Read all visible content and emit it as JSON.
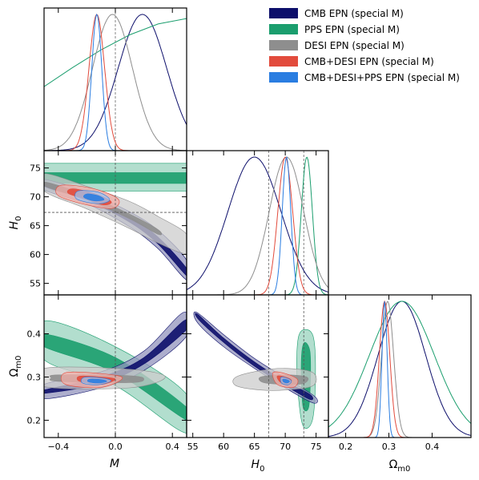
{
  "colors": {
    "cmb": "#0d0f6b",
    "pps": "#1b9e6e",
    "desi": "#8e8e8e",
    "cmb_desi": "#e24b3c",
    "all": "#2a7de1"
  },
  "legend": [
    {
      "key": "cmb",
      "label": "CMB EPN (special M)"
    },
    {
      "key": "pps",
      "label": "PPS EPN (special M)"
    },
    {
      "key": "desi",
      "label": "DESI EPN (special M)"
    },
    {
      "key": "cmb_desi",
      "label": "CMB+DESI EPN (special M)"
    },
    {
      "key": "all",
      "label": "CMB+DESI+PPS EPN (special M)"
    }
  ],
  "labels": {
    "M": "M",
    "H0": "H",
    "H0_sub": "0",
    "Om": "Ω",
    "Om_sub": "m0"
  },
  "chart_data": {
    "type": "corner",
    "parameters": [
      {
        "name": "M",
        "range": [
          -0.5,
          0.5
        ],
        "ticks": [
          -0.4,
          0.0,
          0.4
        ],
        "tick_labels": [
          "−0.4",
          "0.0",
          "0.4"
        ]
      },
      {
        "name": "H0",
        "range": [
          54,
          77
        ],
        "ticks": [
          55,
          60,
          65,
          70,
          75
        ],
        "tick_labels": [
          "55",
          "60",
          "65",
          "70",
          "75"
        ],
        "y_ticks": [
          55,
          60,
          65,
          70,
          75
        ],
        "y_tick_labels": [
          "55",
          "60",
          "65",
          "70",
          "75"
        ],
        "y_range": [
          53,
          78
        ]
      },
      {
        "name": "Omega_m0",
        "range": [
          0.16,
          0.49
        ],
        "ticks": [
          0.2,
          0.3,
          0.4
        ],
        "tick_labels": [
          "0.2",
          "0.3",
          "0.4"
        ]
      }
    ],
    "reference_lines": {
      "M": 0.0,
      "H0": 67.3,
      "H0_alt": 73.0
    },
    "marginals_1d": {
      "M": [
        {
          "series": "cmb",
          "mean": 0.19,
          "sigma": 0.17
        },
        {
          "series": "pps",
          "monotonic": true,
          "points": [
            [
              -0.5,
              0.47
            ],
            [
              -0.3,
              0.61
            ],
            [
              -0.1,
              0.74
            ],
            [
              0.1,
              0.85
            ],
            [
              0.3,
              0.93
            ],
            [
              0.5,
              0.97
            ]
          ]
        },
        {
          "series": "desi",
          "mean": -0.02,
          "sigma": 0.14
        },
        {
          "series": "cmb_desi",
          "mean": -0.13,
          "sigma": 0.055
        },
        {
          "series": "all",
          "mean": -0.13,
          "sigma": 0.035
        }
      ],
      "H0": [
        {
          "series": "cmb",
          "mean": 65.0,
          "sigma": 4.3
        },
        {
          "series": "pps",
          "mean": 73.5,
          "sigma": 0.9
        },
        {
          "series": "desi",
          "mean": 70.2,
          "sigma": 2.8
        },
        {
          "series": "cmb_desi",
          "mean": 70.0,
          "sigma": 1.2
        },
        {
          "series": "all",
          "mean": 70.2,
          "sigma": 0.7
        }
      ],
      "Omega_m0": [
        {
          "series": "cmb",
          "mean": 0.33,
          "sigma": 0.055
        },
        {
          "series": "pps",
          "mean": 0.33,
          "sigma": 0.075
        },
        {
          "series": "desi",
          "mean": 0.297,
          "sigma": 0.014
        },
        {
          "series": "cmb_desi",
          "mean": 0.29,
          "sigma": 0.012
        },
        {
          "series": "all",
          "mean": 0.29,
          "sigma": 0.006
        }
      ]
    },
    "contours_2d": {
      "M_H0": [
        {
          "series": "pps",
          "sigma1": [
            [
              -0.5,
              74.2
            ],
            [
              0.5,
              74.2
            ],
            [
              0.5,
              72.3
            ],
            [
              -0.5,
              72.3
            ]
          ],
          "sigma2": [
            [
              -0.5,
              75.8
            ],
            [
              0.5,
              75.8
            ],
            [
              0.5,
              71.0
            ],
            [
              -0.5,
              71.0
            ]
          ]
        },
        {
          "series": "cmb",
          "sigma1": [
            [
              -0.48,
              72.4
            ],
            [
              -0.2,
              70.2
            ],
            [
              0.1,
              66.6
            ],
            [
              0.3,
              63.0
            ],
            [
              0.5,
              57.6
            ],
            [
              0.5,
              56.3
            ],
            [
              0.3,
              61.8
            ],
            [
              0.1,
              65.6
            ],
            [
              -0.2,
              69.4
            ],
            [
              -0.48,
              71.6
            ]
          ],
          "sigma2": [
            [
              -0.5,
              73.0
            ],
            [
              -0.2,
              70.8
            ],
            [
              0.1,
              67.4
            ],
            [
              0.3,
              64.2
            ],
            [
              0.5,
              59.0
            ],
            [
              0.5,
              55.6
            ],
            [
              0.3,
              61.0
            ],
            [
              0.1,
              64.8
            ],
            [
              -0.2,
              68.8
            ],
            [
              -0.5,
              71.2
            ]
          ]
        },
        {
          "series": "desi",
          "sigma1": [
            [
              -0.48,
              72.5
            ],
            [
              -0.2,
              70.3
            ],
            [
              0.1,
              67.0
            ],
            [
              0.3,
              64.3
            ],
            [
              0.3,
              63.5
            ],
            [
              0.1,
              66.2
            ],
            [
              -0.2,
              69.5
            ],
            [
              -0.48,
              71.7
            ]
          ],
          "sigma2": [
            [
              -0.5,
              74.0
            ],
            [
              -0.2,
              71.8
            ],
            [
              0.1,
              69.2
            ],
            [
              0.3,
              66.6
            ],
            [
              0.5,
              63.5
            ],
            [
              0.5,
              60.2
            ],
            [
              0.3,
              62.0
            ],
            [
              0.1,
              64.5
            ],
            [
              -0.2,
              67.9
            ],
            [
              -0.5,
              71.0
            ]
          ]
        },
        {
          "series": "cmb_desi",
          "sigma1": [
            [
              -0.3,
              71.4
            ],
            [
              -0.15,
              70.6
            ],
            [
              -0.03,
              69.2
            ],
            [
              -0.08,
              68.6
            ],
            [
              -0.2,
              69.5
            ],
            [
              -0.33,
              70.6
            ]
          ],
          "sigma2": [
            [
              -0.38,
              72.0
            ],
            [
              -0.15,
              71.4
            ],
            [
              0.02,
              69.6
            ],
            [
              -0.02,
              68.0
            ],
            [
              -0.2,
              68.6
            ],
            [
              -0.4,
              70.2
            ]
          ]
        },
        {
          "series": "all",
          "sigma1": [
            [
              -0.2,
              70.5
            ],
            [
              -0.12,
              70.2
            ],
            [
              -0.08,
              69.5
            ],
            [
              -0.15,
              69.3
            ],
            [
              -0.22,
              69.9
            ]
          ],
          "sigma2": [
            [
              -0.26,
              71.0
            ],
            [
              -0.12,
              70.8
            ],
            [
              -0.04,
              69.5
            ],
            [
              -0.12,
              68.8
            ],
            [
              -0.27,
              69.6
            ]
          ]
        }
      ],
      "M_Om": [
        {
          "series": "pps",
          "sigma1": [
            [
              -0.5,
              0.4
            ],
            [
              0.0,
              0.345
            ],
            [
              0.5,
              0.23
            ],
            [
              0.5,
              0.2
            ],
            [
              0.0,
              0.31
            ],
            [
              -0.5,
              0.37
            ]
          ],
          "sigma2": [
            [
              -0.5,
              0.43
            ],
            [
              0.0,
              0.37
            ],
            [
              0.5,
              0.26
            ],
            [
              0.5,
              0.17
            ],
            [
              0.0,
              0.28
            ],
            [
              -0.5,
              0.34
            ]
          ]
        },
        {
          "series": "cmb",
          "sigma1": [
            [
              -0.5,
              0.27
            ],
            [
              -0.1,
              0.3
            ],
            [
              0.2,
              0.345
            ],
            [
              0.48,
              0.43
            ],
            [
              0.5,
              0.41
            ],
            [
              0.2,
              0.33
            ],
            [
              -0.1,
              0.285
            ],
            [
              -0.5,
              0.262
            ]
          ],
          "sigma2": [
            [
              -0.5,
              0.283
            ],
            [
              -0.1,
              0.312
            ],
            [
              0.2,
              0.36
            ],
            [
              0.48,
              0.45
            ],
            [
              0.5,
              0.395
            ],
            [
              0.2,
              0.315
            ],
            [
              -0.1,
              0.275
            ],
            [
              -0.5,
              0.25
            ]
          ]
        },
        {
          "series": "desi",
          "sigma1": [
            [
              -0.4,
              0.305
            ],
            [
              0.1,
              0.303
            ],
            [
              0.2,
              0.295
            ],
            [
              0.1,
              0.287
            ],
            [
              -0.4,
              0.29
            ],
            [
              -0.45,
              0.298
            ]
          ],
          "sigma2": [
            [
              -0.5,
              0.32
            ],
            [
              0.1,
              0.318
            ],
            [
              0.35,
              0.3
            ],
            [
              0.1,
              0.275
            ],
            [
              -0.5,
              0.278
            ]
          ]
        },
        {
          "series": "cmb_desi",
          "sigma1": [
            [
              -0.25,
              0.302
            ],
            [
              -0.1,
              0.3
            ],
            [
              0.0,
              0.295
            ],
            [
              -0.1,
              0.283
            ],
            [
              -0.25,
              0.29
            ]
          ],
          "sigma2": [
            [
              -0.35,
              0.31
            ],
            [
              -0.1,
              0.308
            ],
            [
              0.05,
              0.298
            ],
            [
              -0.1,
              0.276
            ],
            [
              -0.35,
              0.283
            ]
          ]
        },
        {
          "series": "all",
          "sigma1": [
            [
              -0.18,
              0.295
            ],
            [
              -0.1,
              0.294
            ],
            [
              -0.06,
              0.29
            ],
            [
              -0.12,
              0.286
            ],
            [
              -0.19,
              0.289
            ]
          ],
          "sigma2": [
            [
              -0.22,
              0.299
            ],
            [
              -0.1,
              0.298
            ],
            [
              -0.03,
              0.291
            ],
            [
              -0.12,
              0.282
            ],
            [
              -0.23,
              0.286
            ]
          ]
        }
      ],
      "H0_Om": [
        {
          "series": "pps",
          "sigma1": [
            [
              73.2,
              0.38
            ],
            [
              74.0,
              0.36
            ],
            [
              74.1,
              0.3
            ],
            [
              73.8,
              0.23
            ],
            [
              72.9,
              0.23
            ],
            [
              72.6,
              0.3
            ],
            [
              72.7,
              0.36
            ]
          ],
          "sigma2": [
            [
              73.3,
              0.41
            ],
            [
              74.6,
              0.39
            ],
            [
              74.9,
              0.3
            ],
            [
              74.4,
              0.2
            ],
            [
              72.8,
              0.19
            ],
            [
              71.9,
              0.3
            ],
            [
              72.1,
              0.39
            ]
          ]
        },
        {
          "series": "cmb",
          "sigma1": [
            [
              55.8,
              0.445
            ],
            [
              60.0,
              0.39
            ],
            [
              65.0,
              0.335
            ],
            [
              70.0,
              0.29
            ],
            [
              74.0,
              0.26
            ],
            [
              74.0,
              0.248
            ],
            [
              70.0,
              0.28
            ],
            [
              65.0,
              0.325
            ],
            [
              60.0,
              0.38
            ],
            [
              56.0,
              0.432
            ]
          ],
          "sigma2": [
            [
              55.6,
              0.45
            ],
            [
              60.0,
              0.398
            ],
            [
              65.0,
              0.343
            ],
            [
              70.0,
              0.298
            ],
            [
              74.8,
              0.255
            ],
            [
              74.5,
              0.24
            ],
            [
              70.0,
              0.275
            ],
            [
              65.0,
              0.32
            ],
            [
              60.0,
              0.37
            ],
            [
              55.8,
              0.425
            ]
          ]
        },
        {
          "series": "desi",
          "sigma1": [
            [
              66.0,
              0.3
            ],
            [
              70.0,
              0.305
            ],
            [
              73.5,
              0.3
            ],
            [
              73.0,
              0.285
            ],
            [
              70.0,
              0.283
            ],
            [
              66.5,
              0.287
            ]
          ],
          "sigma2": [
            [
              62.0,
              0.3
            ],
            [
              66.0,
              0.315
            ],
            [
              70.0,
              0.32
            ],
            [
              74.5,
              0.31
            ],
            [
              74.5,
              0.28
            ],
            [
              70.0,
              0.27
            ],
            [
              66.0,
              0.27
            ],
            [
              62.0,
              0.28
            ]
          ]
        },
        {
          "series": "cmb_desi",
          "sigma1": [
            [
              68.7,
              0.302
            ],
            [
              70.0,
              0.3
            ],
            [
              71.0,
              0.293
            ],
            [
              70.5,
              0.283
            ],
            [
              69.2,
              0.288
            ]
          ],
          "sigma2": [
            [
              68.0,
              0.31
            ],
            [
              70.0,
              0.308
            ],
            [
              72.0,
              0.294
            ],
            [
              71.3,
              0.276
            ],
            [
              68.7,
              0.283
            ]
          ]
        },
        {
          "series": "all",
          "sigma1": [
            [
              69.6,
              0.295
            ],
            [
              70.2,
              0.294
            ],
            [
              70.7,
              0.29
            ],
            [
              70.3,
              0.286
            ],
            [
              69.7,
              0.289
            ]
          ],
          "sigma2": [
            [
              69.3,
              0.299
            ],
            [
              70.2,
              0.298
            ],
            [
              71.0,
              0.291
            ],
            [
              70.5,
              0.282
            ],
            [
              69.4,
              0.286
            ]
          ]
        }
      ]
    }
  }
}
